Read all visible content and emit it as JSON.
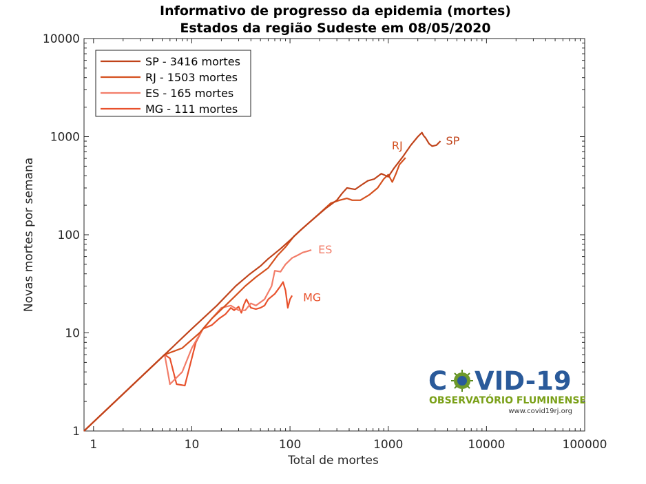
{
  "chart_data": {
    "type": "line",
    "title": "Informativo de progresso da epidemia (mortes)",
    "subtitle": "Estados da região Sudeste  em 08/05/2020",
    "xlabel": "Total de mortes",
    "ylabel": "Novas mortes por semana",
    "xscale": "log",
    "yscale": "log",
    "xlim": [
      0.8,
      100000
    ],
    "ylim": [
      1,
      10000
    ],
    "x_ticks": [
      1,
      10,
      100,
      1000,
      10000,
      100000
    ],
    "x_tick_labels": [
      "1",
      "10",
      "100",
      "1000",
      "10000",
      "100000"
    ],
    "y_ticks": [
      1,
      10,
      100,
      1000,
      10000
    ],
    "y_tick_labels": [
      "1",
      "10",
      "100",
      "1000",
      "10000"
    ],
    "grid": false,
    "legend_position": "top-left",
    "series": [
      {
        "name": "SP - 3416 mortes",
        "label": "SP",
        "color": "#c0431a",
        "x": [
          0.8,
          5.3,
          10,
          18,
          28,
          38,
          50,
          60,
          80,
          100,
          130,
          180,
          230,
          300,
          340,
          380,
          460,
          530,
          620,
          720,
          850,
          1000,
          1150,
          1400,
          1700,
          2000,
          2200,
          2300,
          2400,
          2600,
          2800,
          3100,
          3400
        ],
        "y": [
          1,
          6,
          11,
          19,
          30,
          39,
          48,
          57,
          72,
          88,
          113,
          150,
          185,
          225,
          265,
          300,
          290,
          320,
          355,
          370,
          420,
          390,
          480,
          620,
          820,
          1000,
          1100,
          1020,
          970,
          850,
          800,
          820,
          900
        ]
      },
      {
        "name": "RJ - 1503 mortes",
        "label": "RJ",
        "color": "#d4501e",
        "x": [
          0.8,
          5.3,
          8,
          12,
          16,
          22,
          28,
          35,
          45,
          60,
          75,
          90,
          110,
          150,
          200,
          260,
          320,
          380,
          430,
          520,
          640,
          780,
          900,
          1000,
          1100,
          1200,
          1300,
          1500
        ],
        "y": [
          1,
          6,
          7,
          10,
          14,
          19,
          24,
          30,
          37,
          46,
          62,
          75,
          97,
          128,
          165,
          210,
          225,
          235,
          225,
          225,
          255,
          300,
          370,
          410,
          345,
          420,
          520,
          610
        ]
      },
      {
        "name": "ES - 165 mortes",
        "label": "ES",
        "color": "#f27c68",
        "x": [
          0.8,
          5.3,
          6,
          8,
          10,
          13,
          16,
          20,
          25,
          30,
          35,
          40,
          45,
          55,
          65,
          70,
          80,
          90,
          105,
          120,
          135,
          150,
          165
        ],
        "y": [
          1,
          6,
          3,
          4,
          7,
          11,
          14,
          18,
          19,
          17,
          17,
          20,
          19,
          22,
          30,
          43,
          42,
          50,
          58,
          62,
          66,
          68,
          70
        ]
      },
      {
        "name": "MG - 111 mortes",
        "label": "MG",
        "color": "#e8512c",
        "x": [
          0.8,
          5.3,
          6,
          7,
          8.5,
          9.5,
          11,
          13,
          16,
          19,
          22,
          25,
          27,
          30,
          32,
          34,
          36,
          40,
          45,
          50,
          55,
          60,
          70,
          80,
          85,
          90,
          95,
          100,
          105
        ],
        "y": [
          1,
          6,
          5.5,
          3,
          2.9,
          4.5,
          8,
          11,
          12,
          14,
          15.5,
          18,
          17,
          18.5,
          16,
          19.5,
          22,
          18,
          17.5,
          18,
          19,
          22,
          25,
          30,
          33,
          27,
          18,
          22,
          24
        ]
      }
    ]
  },
  "logo": {
    "name": "COVID-19",
    "subtitle": "OBSERVATÓRIO FLUMINENSE",
    "url": "www.covid19rj.org"
  }
}
